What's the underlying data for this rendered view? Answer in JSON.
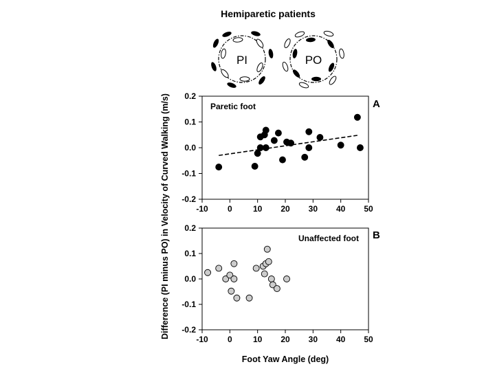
{
  "figure": {
    "title": "Hemiparetic patients",
    "conditions": [
      {
        "label": "PI"
      },
      {
        "label": "PO"
      }
    ],
    "colors": {
      "paretic_marker": "#000000",
      "unaffected_marker": "#cccccc",
      "marker_edge": "#000000",
      "footprint_paretic": "#000000",
      "footprint_unaffected": "#ffffff"
    }
  },
  "chart_data": [
    {
      "type": "scatter",
      "panel_letter": "A",
      "panel_label": "Paretic foot",
      "ylabel": "Difference (PI minus PO) in Velocity of Curved Walking (m/s)",
      "xlim": [
        -10,
        50
      ],
      "ylim": [
        -0.2,
        0.2
      ],
      "x_ticks": [
        "-10",
        "0",
        "10",
        "20",
        "30",
        "40",
        "50"
      ],
      "y_ticks": [
        "0.2",
        "0.1",
        "0.0",
        "-0.1",
        "-0.2"
      ],
      "grid": false,
      "marker_color": "#000000",
      "points": [
        {
          "x": -4,
          "y": -0.075
        },
        {
          "x": 9,
          "y": -0.072
        },
        {
          "x": 10,
          "y": -0.022
        },
        {
          "x": 11,
          "y": 0.0
        },
        {
          "x": 11,
          "y": 0.042
        },
        {
          "x": 12.5,
          "y": 0.05
        },
        {
          "x": 13,
          "y": 0.068
        },
        {
          "x": 13,
          "y": 0.0
        },
        {
          "x": 16,
          "y": 0.028
        },
        {
          "x": 17.5,
          "y": 0.057
        },
        {
          "x": 19,
          "y": -0.047
        },
        {
          "x": 20.5,
          "y": 0.022
        },
        {
          "x": 22,
          "y": 0.018
        },
        {
          "x": 27,
          "y": -0.037
        },
        {
          "x": 28.5,
          "y": 0.062
        },
        {
          "x": 28.5,
          "y": 0.0
        },
        {
          "x": 32.5,
          "y": 0.04
        },
        {
          "x": 40,
          "y": 0.01
        },
        {
          "x": 46,
          "y": 0.118
        },
        {
          "x": 47,
          "y": 0.0
        }
      ],
      "trendline": {
        "style": "dashed",
        "from": {
          "x": -4,
          "y": -0.03
        },
        "to": {
          "x": 46,
          "y": 0.048
        }
      }
    },
    {
      "type": "scatter",
      "panel_letter": "B",
      "panel_label": "Unaffected foot",
      "xlabel": "Foot Yaw Angle (deg)",
      "xlim": [
        -10,
        50
      ],
      "ylim": [
        -0.2,
        0.2
      ],
      "x_ticks": [
        "-10",
        "0",
        "10",
        "20",
        "30",
        "40",
        "50"
      ],
      "y_ticks": [
        "0.2",
        "0.1",
        "0.0",
        "-0.1",
        "-0.2"
      ],
      "grid": false,
      "marker_color": "#cccccc",
      "points": [
        {
          "x": -8,
          "y": 0.025
        },
        {
          "x": -4,
          "y": 0.042
        },
        {
          "x": -1.5,
          "y": 0.0
        },
        {
          "x": 0,
          "y": 0.015
        },
        {
          "x": 0.5,
          "y": -0.048
        },
        {
          "x": 1.5,
          "y": 0.06
        },
        {
          "x": 1.5,
          "y": 0.0
        },
        {
          "x": 2.5,
          "y": -0.075
        },
        {
          "x": 7,
          "y": -0.075
        },
        {
          "x": 9.5,
          "y": 0.042
        },
        {
          "x": 12,
          "y": 0.05
        },
        {
          "x": 12.5,
          "y": 0.02
        },
        {
          "x": 13,
          "y": 0.06
        },
        {
          "x": 13.5,
          "y": 0.117
        },
        {
          "x": 14,
          "y": 0.068
        },
        {
          "x": 15,
          "y": 0.0
        },
        {
          "x": 15.5,
          "y": -0.023
        },
        {
          "x": 17,
          "y": -0.038
        },
        {
          "x": 20.5,
          "y": 0.0
        }
      ]
    }
  ]
}
